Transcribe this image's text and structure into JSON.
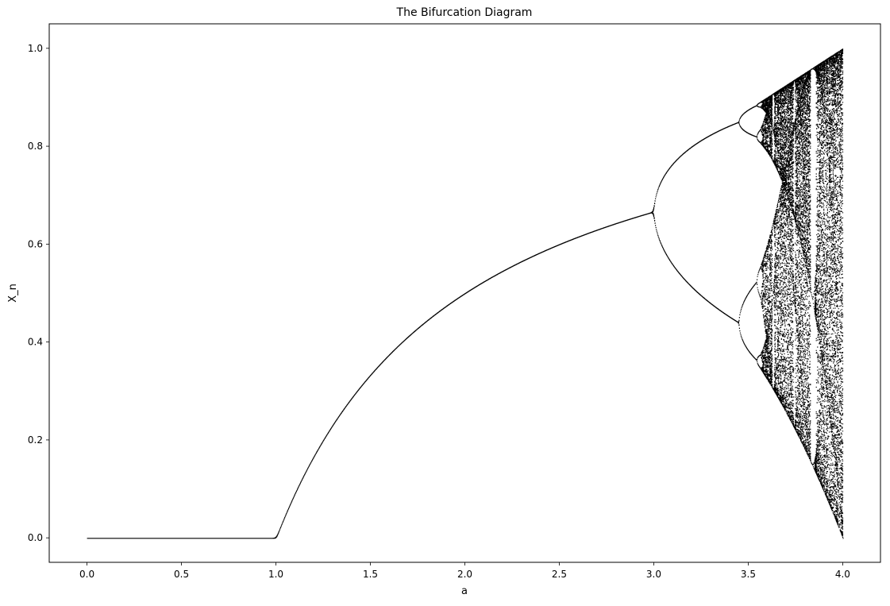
{
  "chart_data": {
    "type": "scatter",
    "title": "The Bifurcation Diagram",
    "xlabel": "a",
    "ylabel": "X_n",
    "xlim": [
      -0.2,
      4.2
    ],
    "ylim": [
      -0.05,
      1.05
    ],
    "xticks": [
      0.0,
      0.5,
      1.0,
      1.5,
      2.0,
      2.5,
      3.0,
      3.5,
      4.0
    ],
    "xtick_labels": [
      "0.0",
      "0.5",
      "1.0",
      "1.5",
      "2.0",
      "2.5",
      "3.0",
      "3.5",
      "4.0"
    ],
    "yticks": [
      0.0,
      0.2,
      0.4,
      0.6,
      0.8,
      1.0
    ],
    "ytick_labels": [
      "0.0",
      "0.2",
      "0.4",
      "0.6",
      "0.8",
      "1.0"
    ],
    "grid": false,
    "legend": "none",
    "marker_color": "#000000",
    "series": [
      {
        "function": "logistic map x(n+1) = a * x(n) * (1 - x(n))",
        "a_range": [
          0.0,
          4.0
        ],
        "x0": 0.5,
        "transient_iterations": 300,
        "plotted_iterations": 120,
        "a_steps": 1800
      }
    ]
  }
}
